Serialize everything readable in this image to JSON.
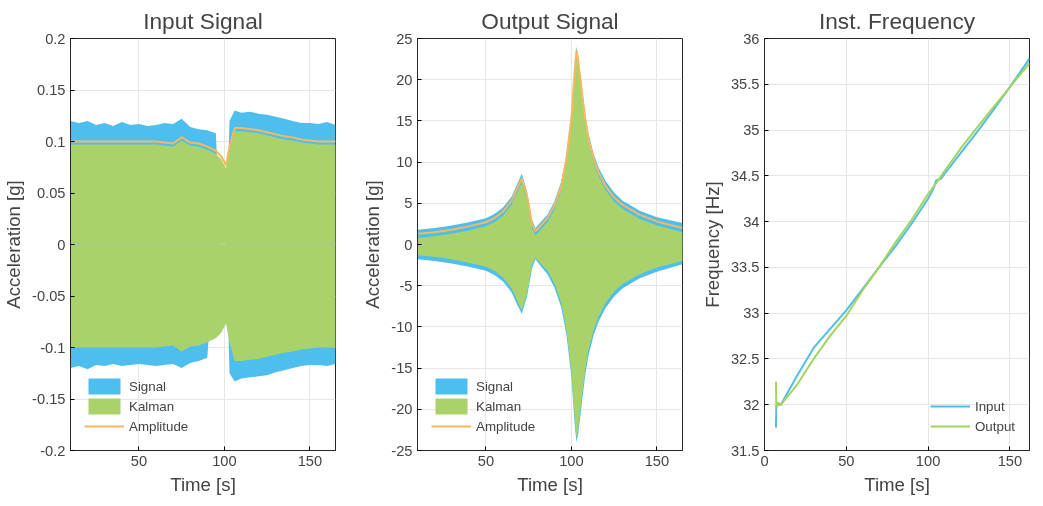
{
  "chart_data": [
    {
      "type": "area",
      "title": "Input Signal",
      "xlabel": "Time [s]",
      "ylabel": "Acceleration [g]",
      "xlim": [
        10,
        165
      ],
      "xticks": [
        50,
        100,
        150
      ],
      "ylim": [
        -0.2,
        0.2
      ],
      "yticks": [
        -0.2,
        -0.15,
        -0.1,
        -0.05,
        0,
        0.05,
        0.1,
        0.15,
        0.2
      ],
      "grid": true,
      "legend": "bottom left",
      "x": [
        10,
        15,
        20,
        25,
        30,
        35,
        40,
        45,
        50,
        55,
        60,
        65,
        70,
        75,
        80,
        85,
        90,
        95,
        98,
        101,
        103,
        106,
        110,
        115,
        120,
        125,
        130,
        135,
        140,
        145,
        150,
        155,
        160,
        165
      ],
      "series": [
        {
          "name": "Signal",
          "type": "area",
          "color": "#4dbeee",
          "values": [
            0.12,
            0.118,
            0.12,
            0.116,
            0.118,
            0.115,
            0.119,
            0.116,
            0.117,
            0.115,
            0.116,
            0.118,
            0.117,
            0.122,
            0.114,
            0.112,
            0.111,
            0.108,
            null,
            null,
            0.12,
            0.13,
            0.128,
            0.129,
            0.127,
            0.126,
            0.124,
            0.122,
            0.12,
            0.118,
            0.118,
            0.117,
            0.119,
            0.116
          ]
        },
        {
          "type": "area",
          "color": "#4dbeee",
          "values": [
            -0.12,
            -0.118,
            -0.121,
            -0.117,
            -0.118,
            -0.116,
            -0.118,
            -0.117,
            -0.116,
            -0.117,
            -0.118,
            -0.117,
            -0.116,
            -0.12,
            -0.115,
            -0.113,
            -0.11,
            null,
            null,
            null,
            -0.125,
            -0.133,
            -0.13,
            -0.129,
            -0.128,
            -0.127,
            -0.124,
            -0.122,
            -0.12,
            -0.118,
            -0.117,
            -0.117,
            -0.118,
            -0.116
          ]
        },
        {
          "name": "Kalman",
          "type": "area",
          "color": "#aad26a",
          "values": [
            0.097,
            0.097,
            0.097,
            0.097,
            0.097,
            0.097,
            0.097,
            0.097,
            0.097,
            0.097,
            0.097,
            0.096,
            0.095,
            0.101,
            0.096,
            0.095,
            0.092,
            0.088,
            0.083,
            0.074,
            0.092,
            0.11,
            0.11,
            0.109,
            0.108,
            0.106,
            0.104,
            0.102,
            0.101,
            0.099,
            0.098,
            0.097,
            0.097,
            0.097
          ]
        },
        {
          "type": "area",
          "color": "#aad26a",
          "values": [
            -0.1,
            -0.1,
            -0.1,
            -0.1,
            -0.1,
            -0.1,
            -0.1,
            -0.1,
            -0.1,
            -0.1,
            -0.1,
            -0.099,
            -0.098,
            -0.104,
            -0.099,
            -0.098,
            -0.095,
            -0.091,
            -0.086,
            -0.077,
            -0.095,
            -0.113,
            -0.113,
            -0.112,
            -0.111,
            -0.109,
            -0.107,
            -0.105,
            -0.104,
            -0.102,
            -0.101,
            -0.1,
            -0.1,
            -0.1
          ]
        },
        {
          "name": "Amplitude",
          "type": "line",
          "color": "#f6b960",
          "values": [
            0.1,
            0.1,
            0.1,
            0.1,
            0.1,
            0.1,
            0.1,
            0.1,
            0.1,
            0.1,
            0.1,
            0.099,
            0.098,
            0.104,
            0.099,
            0.098,
            0.095,
            0.091,
            0.086,
            0.077,
            0.095,
            0.113,
            0.113,
            0.112,
            0.111,
            0.109,
            0.107,
            0.105,
            0.104,
            0.102,
            0.101,
            0.1,
            0.1,
            0.1
          ]
        }
      ]
    },
    {
      "type": "area",
      "title": "Output Signal",
      "xlabel": "Time [s]",
      "ylabel": "Acceleration [g]",
      "xlim": [
        10,
        165
      ],
      "xticks": [
        50,
        100,
        150
      ],
      "ylim": [
        -25,
        25
      ],
      "yticks": [
        -25,
        -20,
        -15,
        -10,
        -5,
        0,
        5,
        10,
        15,
        20,
        25
      ],
      "grid": true,
      "legend": "bottom left",
      "x": [
        10,
        20,
        30,
        40,
        50,
        55,
        60,
        65,
        68,
        71,
        74,
        77,
        79,
        82,
        86,
        90,
        94,
        97,
        100,
        102,
        103,
        104,
        106,
        108,
        110,
        113,
        116,
        120,
        125,
        130,
        140,
        150,
        165
      ],
      "series": [
        {
          "name": "Signal",
          "type": "area",
          "color": "#4dbeee",
          "values": [
            1.8,
            2.0,
            2.3,
            2.7,
            3.2,
            3.7,
            4.5,
            5.8,
            7.2,
            8.6,
            6.5,
            3.0,
            2.0,
            2.7,
            3.6,
            5.2,
            7.6,
            10.8,
            16.0,
            22.0,
            24.0,
            23.0,
            19.5,
            16.0,
            13.5,
            11.0,
            9.3,
            7.7,
            6.3,
            5.3,
            4.1,
            3.3,
            2.6
          ]
        },
        {
          "type": "area",
          "color": "#4dbeee",
          "values": [
            -1.8,
            -2.0,
            -2.3,
            -2.7,
            -3.2,
            -3.7,
            -4.5,
            -5.8,
            -7.2,
            -8.4,
            -6.4,
            -2.9,
            -1.8,
            -2.6,
            -3.6,
            -5.2,
            -7.6,
            -10.8,
            -16.0,
            -22.0,
            -24.0,
            -23.0,
            -19.5,
            -16.0,
            -13.5,
            -11.0,
            -9.3,
            -7.7,
            -6.3,
            -5.3,
            -4.1,
            -3.3,
            -2.4
          ]
        },
        {
          "name": "Kalman",
          "type": "area",
          "color": "#aad26a",
          "values": [
            0.8,
            1.0,
            1.3,
            1.7,
            2.2,
            2.7,
            3.5,
            4.8,
            6.2,
            7.5,
            5.5,
            2.0,
            1.1,
            1.8,
            2.7,
            4.2,
            6.5,
            9.7,
            14.8,
            20.8,
            23.0,
            21.8,
            18.3,
            14.8,
            12.3,
            9.9,
            8.2,
            6.6,
            5.2,
            4.3,
            3.1,
            2.3,
            1.5
          ]
        },
        {
          "type": "area",
          "color": "#aad26a",
          "values": [
            -1.3,
            -1.5,
            -1.8,
            -2.2,
            -2.7,
            -3.2,
            -4.0,
            -5.3,
            -6.7,
            -8.0,
            -6.0,
            -2.5,
            -1.6,
            -2.3,
            -3.2,
            -4.7,
            -7.0,
            -10.2,
            -15.3,
            -21.3,
            -23.5,
            -22.3,
            -18.8,
            -15.3,
            -12.8,
            -10.4,
            -8.7,
            -7.1,
            -5.7,
            -4.8,
            -3.6,
            -2.8,
            -2.0
          ]
        },
        {
          "name": "Amplitude",
          "type": "line",
          "color": "#f6b960",
          "values": [
            1.3,
            1.5,
            1.8,
            2.2,
            2.7,
            3.2,
            4.0,
            5.3,
            6.7,
            8.0,
            6.0,
            2.5,
            1.6,
            2.3,
            3.2,
            4.7,
            7.0,
            10.2,
            15.3,
            21.3,
            23.5,
            22.3,
            18.8,
            15.3,
            12.8,
            10.4,
            8.7,
            7.1,
            5.7,
            4.8,
            3.6,
            2.8,
            2.0
          ]
        }
      ]
    },
    {
      "type": "line",
      "title": "Inst. Frequency",
      "xlabel": "Time [s]",
      "ylabel": "Frequency [Hz]",
      "xlim": [
        0,
        162
      ],
      "xticks": [
        0,
        50,
        100,
        150
      ],
      "ylim": [
        31.5,
        36
      ],
      "yticks": [
        31.5,
        32,
        32.5,
        33,
        33.5,
        34,
        34.5,
        35,
        35.5,
        36
      ],
      "grid": true,
      "legend": "bottom right",
      "series": [
        {
          "name": "Input",
          "color": "#4dbeee",
          "x": [
            7,
            7.2,
            7.4,
            10,
            20,
            30,
            50,
            70,
            80,
            90,
            100,
            103,
            105,
            108,
            110,
            120,
            130,
            140,
            150,
            162
          ],
          "values": [
            31.75,
            31.98,
            32.0,
            32.0,
            32.32,
            32.62,
            33.03,
            33.5,
            33.73,
            33.98,
            34.25,
            34.35,
            34.45,
            34.47,
            34.52,
            34.75,
            34.98,
            35.22,
            35.47,
            35.78
          ]
        },
        {
          "name": "Output",
          "color": "#a2d45e",
          "x": [
            7,
            7.2,
            7.4,
            8.5,
            10,
            20,
            30,
            40,
            50,
            60,
            70,
            80,
            90,
            100,
            105,
            110,
            120,
            130,
            140,
            150,
            162
          ],
          "values": [
            32.25,
            32.02,
            31.97,
            32.02,
            32.0,
            32.22,
            32.5,
            32.75,
            32.97,
            33.25,
            33.5,
            33.77,
            34.02,
            34.3,
            34.42,
            34.55,
            34.8,
            35.03,
            35.25,
            35.47,
            35.73
          ]
        }
      ]
    }
  ]
}
